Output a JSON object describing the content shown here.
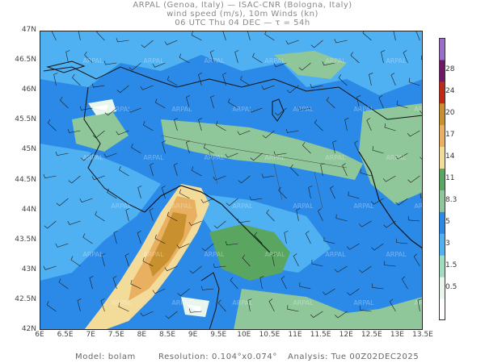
{
  "header": {
    "line1": "ARPAL (Genoa, Italy)  —  ISAC-CNR (Bologna, Italy)",
    "line2": "wind speed (m/s), 10m Winds (kn)",
    "line3": "06 UTC Thu 04 DEC  —  τ = 54h"
  },
  "axes": {
    "lat_labels": [
      "47N",
      "46.5N",
      "46N",
      "45.5N",
      "45N",
      "44.5N",
      "44N",
      "43.5N",
      "43N",
      "42.5N",
      "42N"
    ],
    "lon_labels": [
      "6E",
      "6.5E",
      "7E",
      "7.5E",
      "8E",
      "8.5E",
      "9E",
      "9.5E",
      "10E",
      "10.5E",
      "11E",
      "11.5E",
      "12E",
      "12.5E",
      "13E",
      "13.5E"
    ]
  },
  "colorbar": {
    "labels": [
      "28",
      "24",
      "20",
      "17",
      "14",
      "11",
      "8.3",
      "5",
      "3",
      "1.5",
      "0.5"
    ],
    "colors": [
      "#ffffff",
      "#e8f6ee",
      "#9fdcc0",
      "#4fb0f2",
      "#2b8ae8",
      "#8fc79a",
      "#5aa560",
      "#f3dc9a",
      "#e8b060",
      "#c8902e",
      "#c02818",
      "#701866",
      "#9a6ec8"
    ]
  },
  "watermark": "ARPAL",
  "footer": {
    "model": "Model: bolam",
    "resolution": "Resolution: 0.104°x0.074°",
    "analysis": "Analysis: Tue 00Z02DEC2025"
  }
}
